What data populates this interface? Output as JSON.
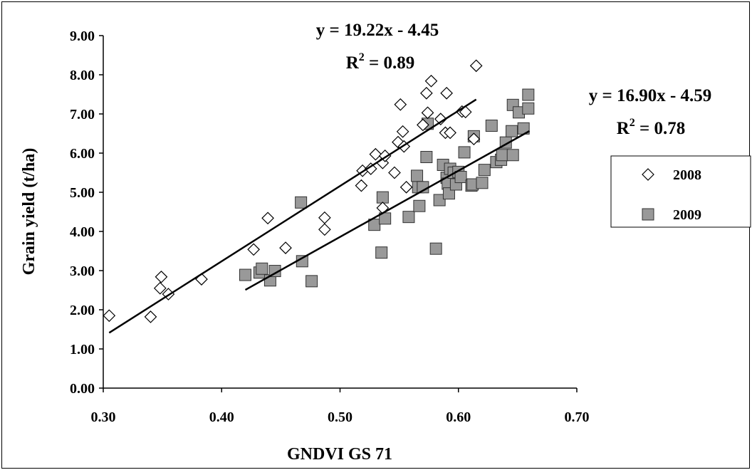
{
  "chart_data": {
    "type": "scatter",
    "xlabel": "GNDVI GS 71",
    "ylabel": "Grain yield (t/ha)",
    "xlim": [
      0.3,
      0.7
    ],
    "ylim": [
      0.0,
      9.0
    ],
    "x_ticks": [
      "0.30",
      "0.40",
      "0.50",
      "0.60",
      "0.70"
    ],
    "y_ticks": [
      "0.00",
      "1.00",
      "2.00",
      "3.00",
      "4.00",
      "5.00",
      "6.00",
      "7.00",
      "8.00",
      "9.00"
    ],
    "legend_position": "right",
    "series": [
      {
        "name": "2008",
        "marker": "diamond-open",
        "color": "#000000",
        "points": [
          [
            0.305,
            1.85
          ],
          [
            0.34,
            1.82
          ],
          [
            0.348,
            2.55
          ],
          [
            0.349,
            2.84
          ],
          [
            0.355,
            2.4
          ],
          [
            0.383,
            2.78
          ],
          [
            0.427,
            3.54
          ],
          [
            0.439,
            4.34
          ],
          [
            0.454,
            3.58
          ],
          [
            0.487,
            4.35
          ],
          [
            0.487,
            4.05
          ],
          [
            0.518,
            5.17
          ],
          [
            0.519,
            5.55
          ],
          [
            0.526,
            5.6
          ],
          [
            0.53,
            5.97
          ],
          [
            0.536,
            5.75
          ],
          [
            0.536,
            4.6
          ],
          [
            0.538,
            5.93
          ],
          [
            0.546,
            5.5
          ],
          [
            0.549,
            6.28
          ],
          [
            0.551,
            7.24
          ],
          [
            0.553,
            6.55
          ],
          [
            0.554,
            6.17
          ],
          [
            0.556,
            5.13
          ],
          [
            0.57,
            6.72
          ],
          [
            0.573,
            7.53
          ],
          [
            0.574,
            7.03
          ],
          [
            0.577,
            7.84
          ],
          [
            0.585,
            6.87
          ],
          [
            0.589,
            6.52
          ],
          [
            0.59,
            7.53
          ],
          [
            0.593,
            6.52
          ],
          [
            0.603,
            7.06
          ],
          [
            0.606,
            7.05
          ],
          [
            0.613,
            6.36
          ],
          [
            0.615,
            8.23
          ]
        ]
      },
      {
        "name": "2009",
        "marker": "square-filled",
        "color": "#999999",
        "points": [
          [
            0.42,
            2.89
          ],
          [
            0.432,
            2.95
          ],
          [
            0.434,
            3.05
          ],
          [
            0.441,
            2.75
          ],
          [
            0.445,
            2.99
          ],
          [
            0.467,
            4.74
          ],
          [
            0.468,
            3.24
          ],
          [
            0.476,
            2.73
          ],
          [
            0.529,
            4.17
          ],
          [
            0.535,
            3.46
          ],
          [
            0.536,
            4.87
          ],
          [
            0.538,
            4.33
          ],
          [
            0.558,
            4.37
          ],
          [
            0.565,
            5.42
          ],
          [
            0.566,
            5.13
          ],
          [
            0.567,
            4.65
          ],
          [
            0.57,
            5.13
          ],
          [
            0.573,
            5.9
          ],
          [
            0.574,
            6.75
          ],
          [
            0.581,
            3.56
          ],
          [
            0.584,
            4.8
          ],
          [
            0.587,
            5.7
          ],
          [
            0.59,
            5.37
          ],
          [
            0.591,
            5.22
          ],
          [
            0.592,
            4.97
          ],
          [
            0.593,
            5.6
          ],
          [
            0.596,
            5.5
          ],
          [
            0.598,
            5.2
          ],
          [
            0.6,
            5.52
          ],
          [
            0.602,
            5.39
          ],
          [
            0.605,
            6.02
          ],
          [
            0.611,
            5.17
          ],
          [
            0.612,
            5.2
          ],
          [
            0.613,
            6.43
          ],
          [
            0.62,
            5.24
          ],
          [
            0.622,
            5.57
          ],
          [
            0.628,
            6.7
          ],
          [
            0.632,
            5.77
          ],
          [
            0.636,
            5.83
          ],
          [
            0.637,
            5.95
          ],
          [
            0.64,
            6.27
          ],
          [
            0.645,
            6.56
          ],
          [
            0.646,
            5.95
          ],
          [
            0.646,
            7.23
          ],
          [
            0.651,
            7.04
          ],
          [
            0.655,
            6.63
          ],
          [
            0.659,
            7.14
          ],
          [
            0.659,
            7.49
          ]
        ]
      }
    ],
    "trendlines": [
      {
        "series": "2008",
        "slope": 19.22,
        "intercept": -4.45,
        "x_range": [
          0.305,
          0.615
        ]
      },
      {
        "series": "2009",
        "slope": 16.9,
        "intercept": -4.59,
        "x_range": [
          0.42,
          0.66
        ]
      }
    ],
    "annotations": [
      {
        "series": "2008",
        "equation": "y = 19.22x - 4.45",
        "r2_label": "R",
        "r2_sup": "2",
        "r2_value": " = 0.89"
      },
      {
        "series": "2009",
        "equation": "y = 16.90x - 4.59",
        "r2_label": "R",
        "r2_sup": "2",
        "r2_value": " = 0.78"
      }
    ]
  }
}
